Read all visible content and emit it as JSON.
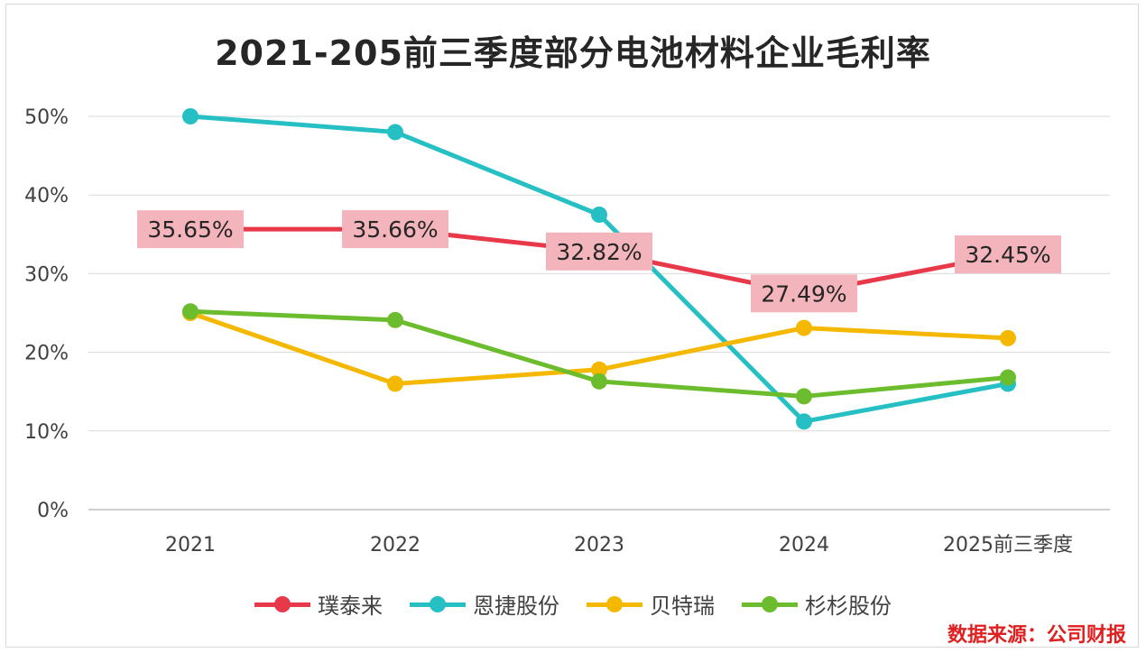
{
  "chart_data": {
    "type": "line",
    "title": "2021-205前三季度部分电池材料企业毛利率",
    "categories": [
      "2021",
      "2022",
      "2023",
      "2024",
      "2025前三季度"
    ],
    "y_ticks": [
      "0%",
      "10%",
      "20%",
      "30%",
      "40%",
      "50%"
    ],
    "ylim": [
      0,
      50
    ],
    "grid": true,
    "legend_position": "bottom",
    "series": [
      {
        "name": "璞泰来",
        "color": "#e8394a",
        "values": [
          35.65,
          35.66,
          32.82,
          27.49,
          32.45
        ],
        "labels": [
          "35.65%",
          "35.66%",
          "32.82%",
          "27.49%",
          "32.45%"
        ]
      },
      {
        "name": "恩捷股份",
        "color": "#26c0c4",
        "values": [
          50.0,
          48.0,
          37.5,
          11.2,
          16.0
        ]
      },
      {
        "name": "贝特瑞",
        "color": "#f5b800",
        "values": [
          25.0,
          16.0,
          17.8,
          23.1,
          21.8
        ]
      },
      {
        "name": "杉杉股份",
        "color": "#6bbd2e",
        "values": [
          25.2,
          24.1,
          16.3,
          14.4,
          16.8
        ]
      }
    ],
    "label_box_color": "#f4b4bc",
    "source": "数据来源：公司财报"
  }
}
